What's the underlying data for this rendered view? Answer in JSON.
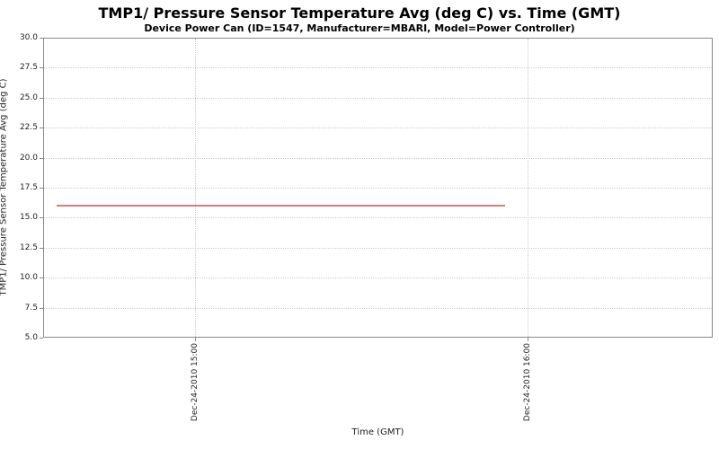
{
  "chart_data": {
    "type": "line",
    "title": "TMP1/ Pressure Sensor Temperature Avg (deg C) vs. Time (GMT)",
    "subtitle": "Device Power Can (ID=1547, Manufacturer=MBARI, Model=Power Controller)",
    "xlabel": "Time (GMT)",
    "ylabel": "TMP1/ Pressure Sensor Temperature Avg (deg C)",
    "ylim": [
      5.0,
      30.0
    ],
    "ytick_labels": [
      "30.0",
      "27.5",
      "25.0",
      "22.5",
      "20.0",
      "17.5",
      "15.0",
      "12.5",
      "10.0",
      "7.5",
      "5.0"
    ],
    "xticks": [
      {
        "label": "Dec-24-2010 15:00",
        "pos": 0.227
      },
      {
        "label": "Dec-24-2010 16:00",
        "pos": 0.723
      }
    ],
    "grid": true,
    "legend_visible": false,
    "series": [
      {
        "color": "#cc5050",
        "points": [
          {
            "time": "Dec-24-2010 14:35",
            "value": 16.0,
            "pos": 0.02
          },
          {
            "time": "Dec-24-2010 15:56",
            "value": 16.0,
            "pos": 0.69
          }
        ]
      }
    ],
    "colors": {
      "grid": "#cccccc",
      "axis_border": "#8a8a8a",
      "tick_text": "#222222",
      "series_line": "#cc5050",
      "background": "#ffffff"
    }
  }
}
